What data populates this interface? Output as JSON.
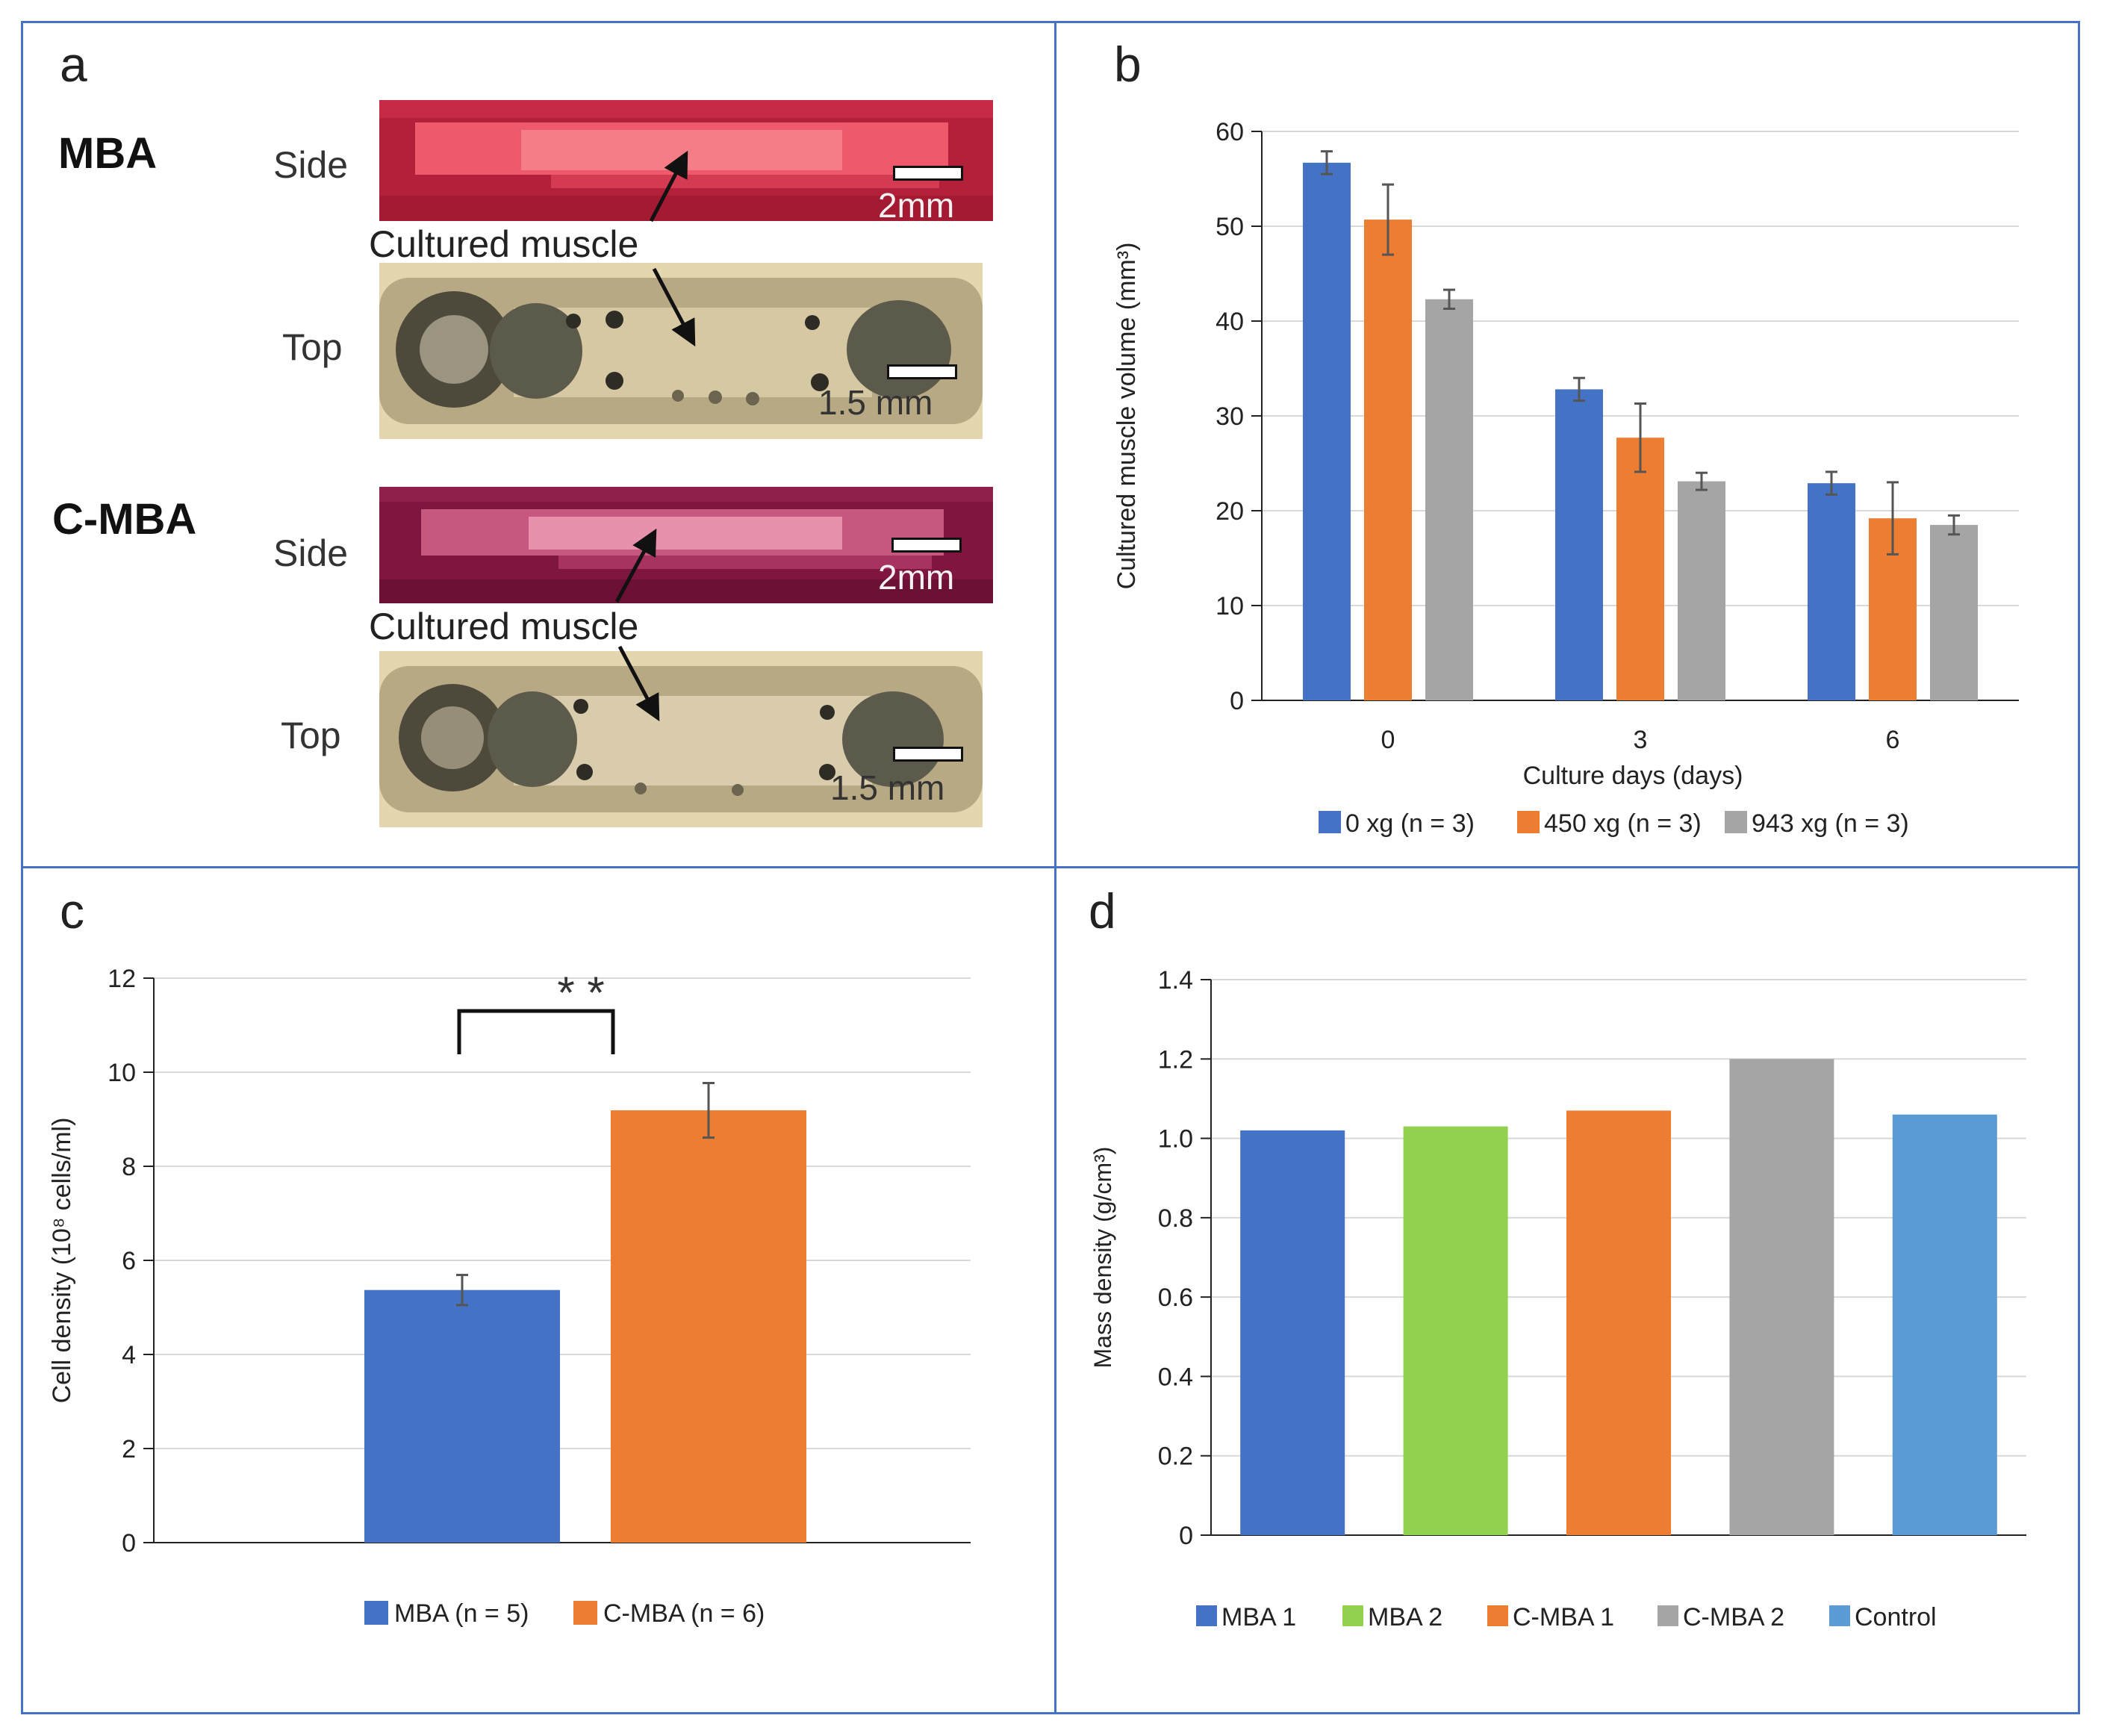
{
  "panels": {
    "a": {
      "letter": "a",
      "mba_title": "MBA",
      "cmba_title": "C-MBA",
      "side_label": "Side",
      "top_label": "Top",
      "cultured_muscle": "Cultured muscle",
      "scale_side": "2mm",
      "scale_top": "1.5 mm",
      "colors": {
        "side_mba": "#c8253a",
        "side_cmba": "#8a1a44",
        "top_bg": "#d9c9a0"
      }
    },
    "b": {
      "letter": "b"
    },
    "c": {
      "letter": "c"
    },
    "d": {
      "letter": "d"
    }
  },
  "chart_data": [
    {
      "id": "b",
      "type": "bar",
      "categories": [
        "0",
        "3",
        "6"
      ],
      "series": [
        {
          "name": "0 xg (n = 3)",
          "color": "#4472c4",
          "values": [
            56.7,
            32.8,
            22.9
          ],
          "errors": [
            1.2,
            1.2,
            1.2
          ]
        },
        {
          "name": "450 xg (n = 3)",
          "color": "#ed7d31",
          "values": [
            50.7,
            27.7,
            19.2
          ],
          "errors": [
            3.7,
            3.6,
            3.8
          ]
        },
        {
          "name": "943 xg (n = 3)",
          "color": "#a5a5a5",
          "values": [
            42.3,
            23.1,
            18.5
          ],
          "errors": [
            1.0,
            0.9,
            1.0
          ]
        }
      ],
      "yticks": [
        "0",
        "10",
        "20",
        "30",
        "40",
        "50",
        "60"
      ],
      "ylim": [
        0,
        60
      ],
      "xlabel": "Culture days (days)",
      "ylabel": "Cultured muscle volume (mm³)",
      "legend": "bottom"
    },
    {
      "id": "c",
      "type": "bar",
      "categories": [
        "MBA (n = 5)",
        "C-MBA (n = 6)"
      ],
      "values": [
        5.37,
        9.19
      ],
      "errors": [
        0.32,
        0.58
      ],
      "colors": [
        "#4472c4",
        "#ed7d31"
      ],
      "yticks": [
        "0",
        "2",
        "4",
        "6",
        "8",
        "10",
        "12"
      ],
      "ylim": [
        0,
        12
      ],
      "ylabel": "Cell density (10⁸ cells/ml)",
      "significance": "* *",
      "legend": "bottom"
    },
    {
      "id": "d",
      "type": "bar",
      "categories": [
        "MBA 1",
        "MBA 2",
        "C-MBA 1",
        "C-MBA 2",
        "Control"
      ],
      "values": [
        1.02,
        1.03,
        1.07,
        1.2,
        1.06
      ],
      "colors": [
        "#4472c4",
        "#92d050",
        "#ed7d31",
        "#a5a5a5",
        "#5b9bd5"
      ],
      "yticks": [
        "0",
        "0.2",
        "0.4",
        "0.6",
        "0.8",
        "1.0",
        "1.2",
        "1.4"
      ],
      "ylim": [
        0,
        1.4
      ],
      "ylabel": "Mass density (g/cm³)",
      "legend": "bottom"
    }
  ]
}
